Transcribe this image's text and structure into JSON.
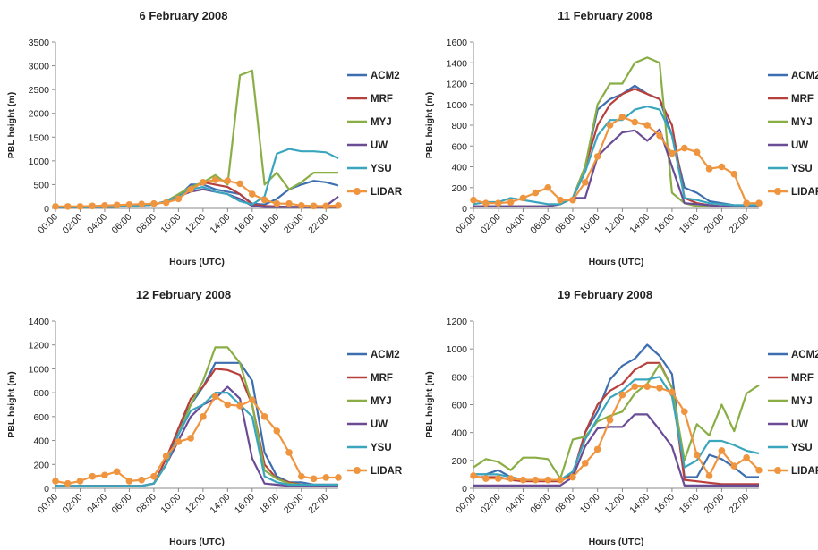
{
  "colors": {
    "ACM2": "#3D6FB0",
    "MRF": "#B8403C",
    "MYJ": "#8AAE46",
    "UW": "#6A4C95",
    "YSU": "#3AA6BE",
    "LIDAR": "#F0953F"
  },
  "chart_data": [
    {
      "type": "line",
      "title": "6 February 2008",
      "xlabel": "Hours (UTC)",
      "ylabel": "PBL height (m)",
      "x_tick_labels": [
        "00:00",
        "02:00",
        "04:00",
        "06:00",
        "08:00",
        "10:00",
        "12:00",
        "14:00",
        "16:00",
        "18:00",
        "20:00",
        "22:00"
      ],
      "ylim": [
        0,
        3500
      ],
      "yticks": [
        0,
        500,
        1000,
        1500,
        2000,
        2500,
        3000,
        3500
      ],
      "legend": "right",
      "grid": false,
      "series": [
        {
          "name": "ACM2",
          "values": [
            30,
            30,
            30,
            30,
            30,
            40,
            50,
            60,
            80,
            150,
            250,
            500,
            500,
            400,
            350,
            300,
            100,
            80,
            200,
            400,
            500,
            580,
            550,
            480
          ]
        },
        {
          "name": "MRF",
          "values": [
            30,
            30,
            30,
            30,
            30,
            40,
            50,
            60,
            80,
            150,
            250,
            400,
            550,
            500,
            450,
            300,
            80,
            50,
            40,
            30,
            30,
            30,
            30,
            30
          ]
        },
        {
          "name": "MYJ",
          "values": [
            30,
            30,
            30,
            30,
            30,
            40,
            50,
            60,
            80,
            150,
            300,
            450,
            550,
            700,
            500,
            2800,
            2900,
            500,
            750,
            400,
            550,
            750,
            750,
            750
          ]
        },
        {
          "name": "UW",
          "values": [
            30,
            30,
            30,
            30,
            30,
            40,
            50,
            60,
            80,
            150,
            250,
            350,
            400,
            350,
            300,
            200,
            50,
            30,
            30,
            30,
            30,
            30,
            50,
            250
          ]
        },
        {
          "name": "YSU",
          "values": [
            30,
            30,
            30,
            30,
            30,
            40,
            50,
            60,
            80,
            150,
            250,
            400,
            450,
            350,
            300,
            150,
            80,
            250,
            1150,
            1250,
            1200,
            1200,
            1180,
            1050
          ]
        },
        {
          "name": "LIDAR",
          "values": [
            40,
            40,
            40,
            50,
            60,
            70,
            80,
            90,
            100,
            120,
            200,
            400,
            550,
            600,
            580,
            520,
            300,
            180,
            100,
            100,
            60,
            50,
            50,
            60
          ]
        }
      ]
    },
    {
      "type": "line",
      "title": "11 February 2008",
      "xlabel": "Hours (UTC)",
      "ylabel": "PBL height (m)",
      "x_tick_labels": [
        "00:00",
        "02:00",
        "04:00",
        "06:00",
        "08:00",
        "10:00",
        "12:00",
        "14:00",
        "16:00",
        "18:00",
        "20:00",
        "22:00"
      ],
      "ylim": [
        0,
        1600
      ],
      "yticks": [
        0,
        200,
        400,
        600,
        800,
        1000,
        1200,
        1400,
        1600
      ],
      "legend": "right",
      "grid": false,
      "series": [
        {
          "name": "ACM2",
          "values": [
            20,
            20,
            20,
            20,
            20,
            20,
            20,
            40,
            100,
            400,
            950,
            1050,
            1100,
            1180,
            1100,
            1050,
            700,
            200,
            150,
            70,
            50,
            30,
            30,
            30
          ]
        },
        {
          "name": "MRF",
          "values": [
            20,
            20,
            20,
            20,
            20,
            20,
            20,
            40,
            100,
            400,
            800,
            1000,
            1100,
            1150,
            1100,
            1050,
            800,
            100,
            50,
            30,
            20,
            20,
            20,
            20
          ]
        },
        {
          "name": "MYJ",
          "values": [
            20,
            20,
            20,
            20,
            20,
            20,
            20,
            40,
            100,
            400,
            1000,
            1200,
            1200,
            1400,
            1450,
            1400,
            150,
            50,
            20,
            20,
            20,
            20,
            20,
            20
          ]
        },
        {
          "name": "UW",
          "values": [
            20,
            20,
            20,
            20,
            20,
            20,
            20,
            40,
            100,
            100,
            500,
            620,
            730,
            750,
            650,
            760,
            400,
            50,
            40,
            30,
            20,
            20,
            20,
            20
          ]
        },
        {
          "name": "YSU",
          "values": [
            40,
            60,
            60,
            100,
            80,
            60,
            40,
            40,
            100,
            350,
            700,
            850,
            850,
            950,
            980,
            950,
            700,
            100,
            80,
            50,
            40,
            30,
            30,
            30
          ]
        },
        {
          "name": "LIDAR",
          "values": [
            80,
            50,
            50,
            60,
            100,
            150,
            200,
            80,
            80,
            250,
            500,
            800,
            880,
            830,
            800,
            700,
            530,
            580,
            540,
            380,
            400,
            330,
            50,
            50
          ]
        }
      ]
    },
    {
      "type": "line",
      "title": "12 February 2008",
      "xlabel": "Hours (UTC)",
      "ylabel": "PBL height (m)",
      "x_tick_labels": [
        "00:00",
        "02:00",
        "04:00",
        "06:00",
        "08:00",
        "10:00",
        "12:00",
        "14:00",
        "16:00",
        "18:00",
        "20:00",
        "22:00"
      ],
      "ylim": [
        0,
        1400
      ],
      "yticks": [
        0,
        200,
        400,
        600,
        800,
        1000,
        1200,
        1400
      ],
      "legend": "right",
      "grid": false,
      "series": [
        {
          "name": "ACM2",
          "values": [
            20,
            20,
            20,
            20,
            20,
            20,
            20,
            20,
            40,
            200,
            500,
            700,
            850,
            1050,
            1050,
            1050,
            900,
            300,
            100,
            50,
            50,
            30,
            30,
            30
          ]
        },
        {
          "name": "MRF",
          "values": [
            20,
            20,
            20,
            20,
            20,
            20,
            20,
            20,
            40,
            250,
            500,
            750,
            850,
            1000,
            990,
            950,
            700,
            200,
            80,
            50,
            30,
            30,
            30,
            30
          ]
        },
        {
          "name": "MYJ",
          "values": [
            20,
            20,
            20,
            20,
            20,
            20,
            20,
            20,
            40,
            200,
            450,
            700,
            900,
            1180,
            1180,
            1050,
            700,
            150,
            80,
            40,
            30,
            20,
            20,
            20
          ]
        },
        {
          "name": "UW",
          "values": [
            20,
            20,
            20,
            20,
            20,
            20,
            20,
            20,
            40,
            200,
            400,
            600,
            700,
            750,
            850,
            750,
            250,
            40,
            30,
            20,
            20,
            20,
            20,
            20
          ]
        },
        {
          "name": "YSU",
          "values": [
            20,
            20,
            20,
            20,
            20,
            20,
            20,
            20,
            40,
            200,
            450,
            650,
            700,
            800,
            800,
            700,
            600,
            100,
            50,
            30,
            30,
            30,
            30,
            30
          ]
        },
        {
          "name": "LIDAR",
          "values": [
            60,
            40,
            60,
            100,
            110,
            140,
            60,
            70,
            100,
            270,
            390,
            420,
            600,
            770,
            700,
            690,
            740,
            600,
            480,
            300,
            100,
            80,
            90,
            90
          ]
        }
      ]
    },
    {
      "type": "line",
      "title": "19 February 2008",
      "xlabel": "Hours (UTC)",
      "ylabel": "PBL height (m)",
      "x_tick_labels": [
        "00:00",
        "02:00",
        "04:00",
        "06:00",
        "08:00",
        "10:00",
        "12:00",
        "14:00",
        "16:00",
        "18:00",
        "20:00",
        "22:00"
      ],
      "ylim": [
        0,
        1200
      ],
      "yticks": [
        0,
        200,
        400,
        600,
        800,
        1000,
        1200
      ],
      "legend": "right",
      "grid": false,
      "series": [
        {
          "name": "ACM2",
          "values": [
            100,
            100,
            130,
            80,
            60,
            60,
            60,
            60,
            100,
            400,
            550,
            780,
            880,
            930,
            1030,
            950,
            820,
            80,
            80,
            240,
            210,
            150,
            80,
            80
          ]
        },
        {
          "name": "MRF",
          "values": [
            80,
            80,
            80,
            60,
            50,
            50,
            50,
            50,
            100,
            400,
            600,
            700,
            750,
            850,
            900,
            900,
            720,
            60,
            50,
            40,
            30,
            30,
            30,
            30
          ]
        },
        {
          "name": "MYJ",
          "values": [
            150,
            210,
            190,
            130,
            220,
            220,
            210,
            70,
            350,
            370,
            480,
            520,
            550,
            680,
            750,
            890,
            720,
            200,
            460,
            380,
            600,
            410,
            680,
            740
          ]
        },
        {
          "name": "UW",
          "values": [
            20,
            20,
            20,
            20,
            20,
            20,
            20,
            20,
            80,
            300,
            430,
            440,
            440,
            530,
            530,
            420,
            300,
            20,
            20,
            20,
            20,
            20,
            20,
            20
          ]
        },
        {
          "name": "YSU",
          "values": [
            100,
            100,
            100,
            80,
            60,
            60,
            60,
            60,
            120,
            350,
            500,
            650,
            700,
            780,
            780,
            800,
            660,
            150,
            200,
            340,
            340,
            310,
            270,
            250
          ]
        },
        {
          "name": "LIDAR",
          "values": [
            90,
            70,
            70,
            70,
            60,
            60,
            60,
            60,
            80,
            180,
            280,
            490,
            670,
            730,
            730,
            720,
            690,
            550,
            240,
            90,
            270,
            160,
            220,
            130
          ]
        }
      ]
    }
  ]
}
